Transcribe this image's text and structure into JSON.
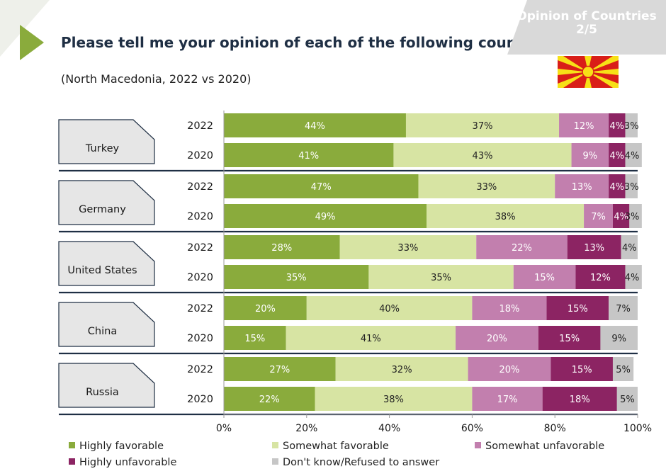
{
  "header": {
    "title": "Please tell me your opinion of each of the following countries.",
    "subtitle": "(North Macedonia, 2022 vs 2020)",
    "badge_line1": "Opinion of Countries",
    "badge_line2": "2/5"
  },
  "colors": {
    "accent": "#8aab3c",
    "badge_bg": "#d9d9d9",
    "flag_red": "#d91e18",
    "flag_yellow": "#f7e017"
  },
  "chart_data": {
    "type": "bar",
    "orientation": "horizontal",
    "stacked": true,
    "xlim": [
      0,
      100
    ],
    "x_ticks": [
      "0%",
      "20%",
      "40%",
      "60%",
      "80%",
      "100%"
    ],
    "grid": false,
    "legend_position": "bottom",
    "series": [
      {
        "name": "Highly favorable",
        "color": "#8aab3c"
      },
      {
        "name": "Somewhat favorable",
        "color": "#d7e4a3"
      },
      {
        "name": "Somewhat unfavorable",
        "color": "#c27fae"
      },
      {
        "name": "Highly unfavorable",
        "color": "#8c2463"
      },
      {
        "name": "Don't know/Refused to answer",
        "color": "#c6c6c6"
      }
    ],
    "groups": [
      {
        "country": "Turkey",
        "rows": [
          {
            "year": "2022",
            "values": [
              44,
              37,
              12,
              4,
              3
            ]
          },
          {
            "year": "2020",
            "values": [
              41,
              43,
              9,
              4,
              4
            ]
          }
        ]
      },
      {
        "country": "Germany",
        "rows": [
          {
            "year": "2022",
            "values": [
              47,
              33,
              13,
              4,
              3
            ]
          },
          {
            "year": "2020",
            "values": [
              49,
              38,
              7,
              4,
              3
            ]
          }
        ]
      },
      {
        "country": "United States",
        "rows": [
          {
            "year": "2022",
            "values": [
              28,
              33,
              22,
              13,
              4
            ]
          },
          {
            "year": "2020",
            "values": [
              35,
              35,
              15,
              12,
              4
            ]
          }
        ]
      },
      {
        "country": "China",
        "rows": [
          {
            "year": "2022",
            "values": [
              20,
              40,
              18,
              15,
              7
            ]
          },
          {
            "year": "2020",
            "values": [
              15,
              41,
              20,
              15,
              9
            ]
          }
        ]
      },
      {
        "country": "Russia",
        "rows": [
          {
            "year": "2022",
            "values": [
              27,
              32,
              20,
              15,
              5
            ]
          },
          {
            "year": "2020",
            "values": [
              22,
              38,
              17,
              18,
              5
            ]
          }
        ]
      }
    ]
  }
}
